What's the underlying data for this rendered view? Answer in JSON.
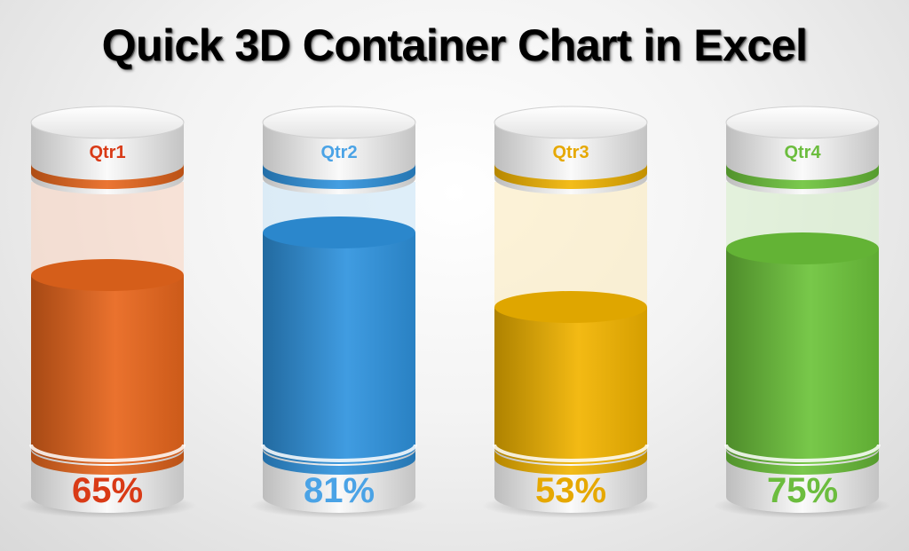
{
  "title": "Quick 3D Container Chart in Excel",
  "chart_data": {
    "type": "bar",
    "title": "Quick 3D Container Chart in Excel",
    "categories": [
      "Qtr1",
      "Qtr2",
      "Qtr3",
      "Qtr4"
    ],
    "values": [
      0.65,
      0.81,
      0.53,
      0.75
    ],
    "value_labels": [
      "65%",
      "81%",
      "53%",
      "75%"
    ],
    "colors": [
      "#e8661c",
      "#2f93de",
      "#f2b400",
      "#6cc33a"
    ],
    "label_colors": [
      "#d93a16",
      "#4aa3e6",
      "#e6a800",
      "#6cbd3e"
    ],
    "ylim": [
      0,
      1
    ],
    "grid": false
  }
}
